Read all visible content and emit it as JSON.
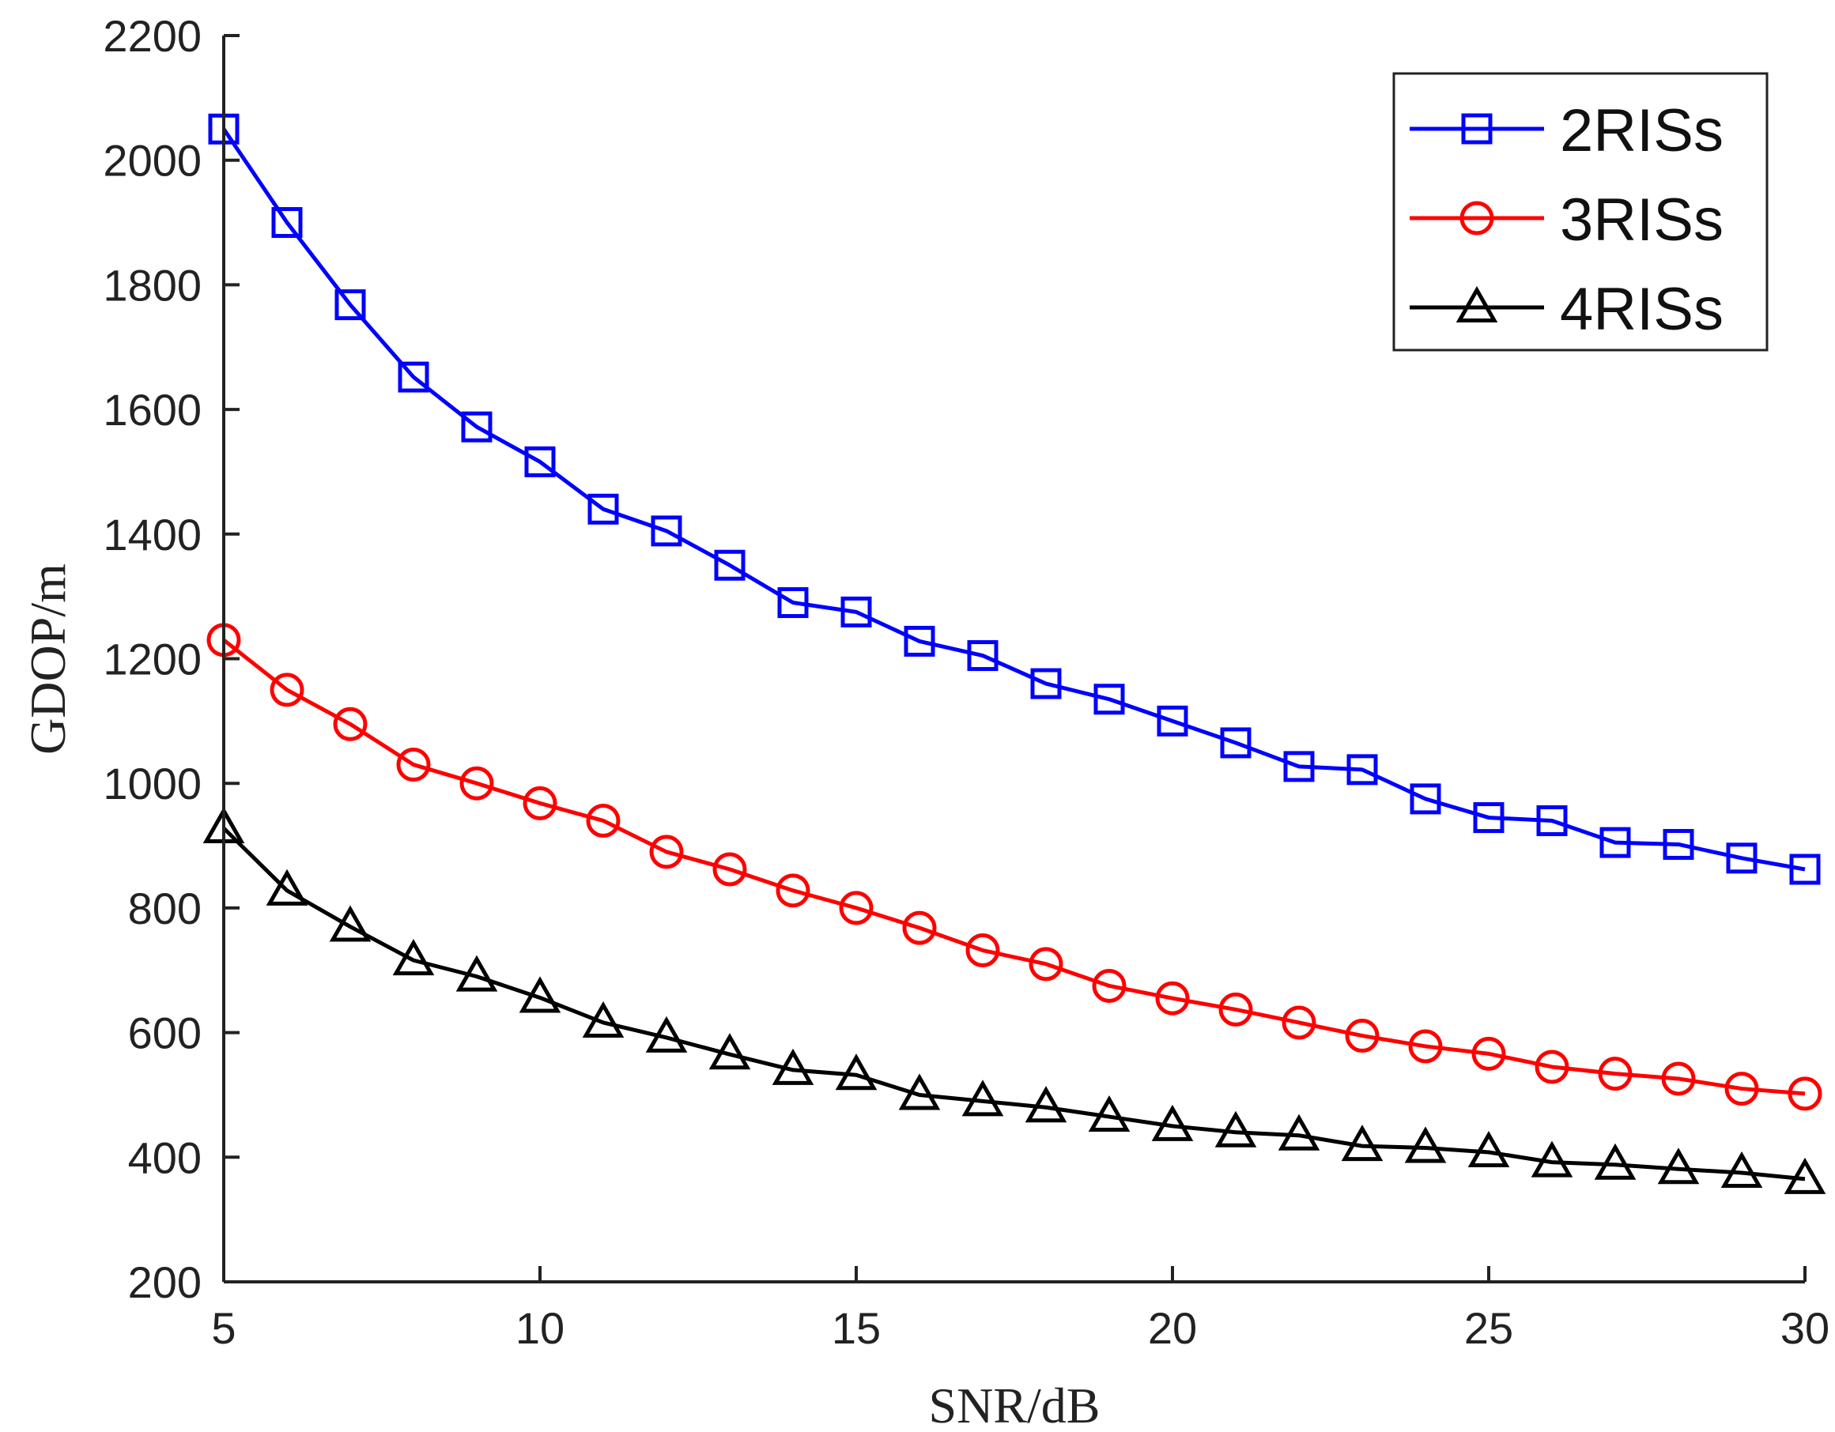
{
  "chart_data": {
    "type": "line",
    "title": "",
    "xlabel": "SNR/dB",
    "ylabel": "GDOP/m",
    "xlim": [
      5,
      30
    ],
    "ylim": [
      200,
      2200
    ],
    "xticks": [
      5,
      10,
      15,
      20,
      25,
      30
    ],
    "yticks": [
      200,
      400,
      600,
      800,
      1000,
      1200,
      1400,
      1600,
      1800,
      2000,
      2200
    ],
    "grid": false,
    "legend_position": "top-right",
    "x": [
      5,
      6,
      7,
      8,
      9,
      10,
      11,
      12,
      13,
      14,
      15,
      16,
      17,
      18,
      19,
      20,
      21,
      22,
      23,
      24,
      25,
      26,
      27,
      28,
      29,
      30
    ],
    "series": [
      {
        "name": "2RISs",
        "color": "#0000ff",
        "marker": "square",
        "values": [
          2050,
          1900,
          1768,
          1652,
          1572,
          1516,
          1440,
          1405,
          1350,
          1290,
          1275,
          1228,
          1205,
          1160,
          1135,
          1100,
          1065,
          1027,
          1022,
          975,
          945,
          940,
          905,
          902,
          880,
          862
        ]
      },
      {
        "name": "3RISs",
        "color": "#ff0000",
        "marker": "circle",
        "values": [
          1230,
          1150,
          1095,
          1030,
          1000,
          968,
          940,
          890,
          862,
          828,
          800,
          768,
          732,
          710,
          675,
          655,
          637,
          616,
          595,
          578,
          566,
          545,
          534,
          526,
          510,
          502
        ]
      },
      {
        "name": "4RISs",
        "color": "#000000",
        "marker": "triangle",
        "values": [
          928,
          828,
          770,
          716,
          690,
          656,
          616,
          592,
          565,
          540,
          532,
          500,
          490,
          480,
          465,
          450,
          440,
          435,
          418,
          415,
          408,
          392,
          388,
          381,
          375,
          365
        ]
      }
    ]
  }
}
